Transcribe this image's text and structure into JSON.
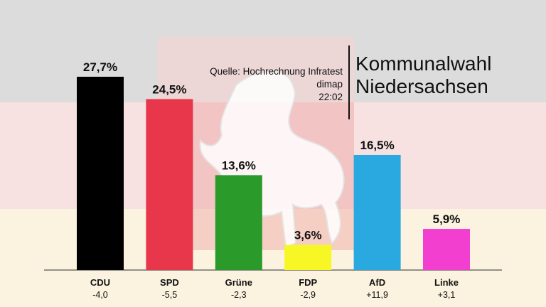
{
  "header": {
    "title_line1": "Kommunalwahl",
    "title_line2": "Niedersachsen",
    "source_line1": "Quelle: Hochrechnung Infratest",
    "source_line2": "dimap",
    "time": "22:02"
  },
  "colors": {
    "CDU": "#000000",
    "SPD": "#e8374a",
    "Grüne": "#2a9a2a",
    "FDP": "#f7f725",
    "AfD": "#2aa8e0",
    "Linke": "#f23fcf"
  },
  "chart_data": {
    "type": "bar",
    "title": "Kommunalwahl Niedersachsen",
    "categories": [
      "CDU",
      "SPD",
      "Grüne",
      "FDP",
      "AfD",
      "Linke"
    ],
    "values": [
      27.7,
      24.5,
      13.6,
      3.6,
      16.5,
      5.9
    ],
    "value_labels": [
      "27,7%",
      "24,5%",
      "13,6%",
      "3,6%",
      "16,5%",
      "5,9%"
    ],
    "changes": [
      "-4,0",
      "-5,5",
      "-2,3",
      "-2,9",
      "+11,9",
      "+3,1"
    ],
    "xlabel": "",
    "ylabel": "",
    "ylim": [
      0,
      30
    ],
    "grid": false
  }
}
